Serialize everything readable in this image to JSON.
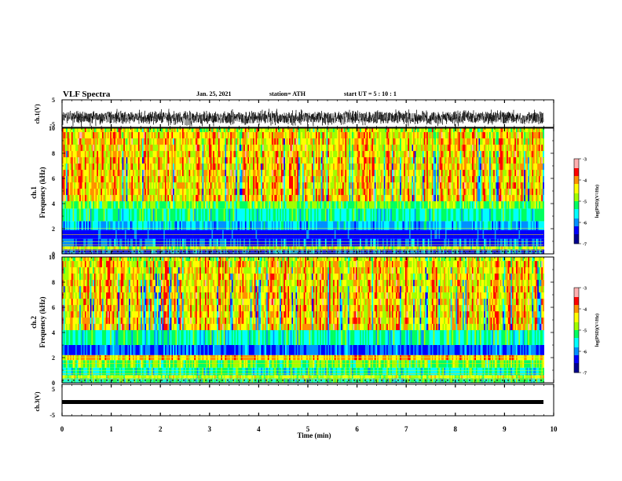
{
  "header": {
    "title": "VLF Spectra",
    "date": "Jan. 25, 2021",
    "station": "station= ATH",
    "start": "start  UT  =  5 : 10 : 1"
  },
  "chart_data": [
    {
      "type": "line",
      "ylabel": "ch.1(V)",
      "ylim": [
        -5,
        5
      ],
      "yticks": [
        "5",
        "-5"
      ],
      "note": "dense oscillating trace roughly between -4 and 3 V over the full span"
    },
    {
      "type": "heatmap",
      "ylabel_top": "ch.1",
      "ylabel": "Frequency (kHz)",
      "ylim": [
        0,
        10
      ],
      "yticks": [
        "0",
        "2",
        "4",
        "6",
        "8",
        "10"
      ],
      "xlim": [
        0,
        9.8
      ],
      "colorbar": {
        "label": "log(PSD)(V²/Hz)",
        "range": [
          -7,
          -3
        ],
        "ticks": [
          "-3",
          "-4",
          "-5",
          "-6",
          "-7"
        ]
      },
      "colors": [
        "#000090",
        "#0000ff",
        "#0090ff",
        "#00ffff",
        "#00ff60",
        "#a0ff00",
        "#ffff00",
        "#ff9000",
        "#ff0000",
        "#ffb0b0"
      ]
    },
    {
      "type": "heatmap",
      "ylabel_top": "ch.2",
      "ylabel": "Frequency (kHz)",
      "ylim": [
        0,
        10
      ],
      "yticks": [
        "0",
        "2",
        "4",
        "6",
        "8",
        "10"
      ],
      "xlim": [
        0,
        9.8
      ],
      "colorbar": {
        "label": "log(PSD)(V²/Hz)",
        "range": [
          -7,
          -3
        ],
        "ticks": [
          "-3",
          "-4",
          "-5",
          "-6",
          "-7"
        ]
      }
    },
    {
      "type": "line",
      "ylabel": "ch.3(V)",
      "ylim": [
        -5,
        5
      ],
      "yticks": [
        "5",
        "-5"
      ],
      "note": "flat thick trace near -1.5 V"
    }
  ],
  "xaxis": {
    "label": "Time (min)",
    "ticks": [
      "0",
      "1",
      "2",
      "3",
      "4",
      "5",
      "6",
      "7",
      "8",
      "9",
      "10"
    ]
  }
}
